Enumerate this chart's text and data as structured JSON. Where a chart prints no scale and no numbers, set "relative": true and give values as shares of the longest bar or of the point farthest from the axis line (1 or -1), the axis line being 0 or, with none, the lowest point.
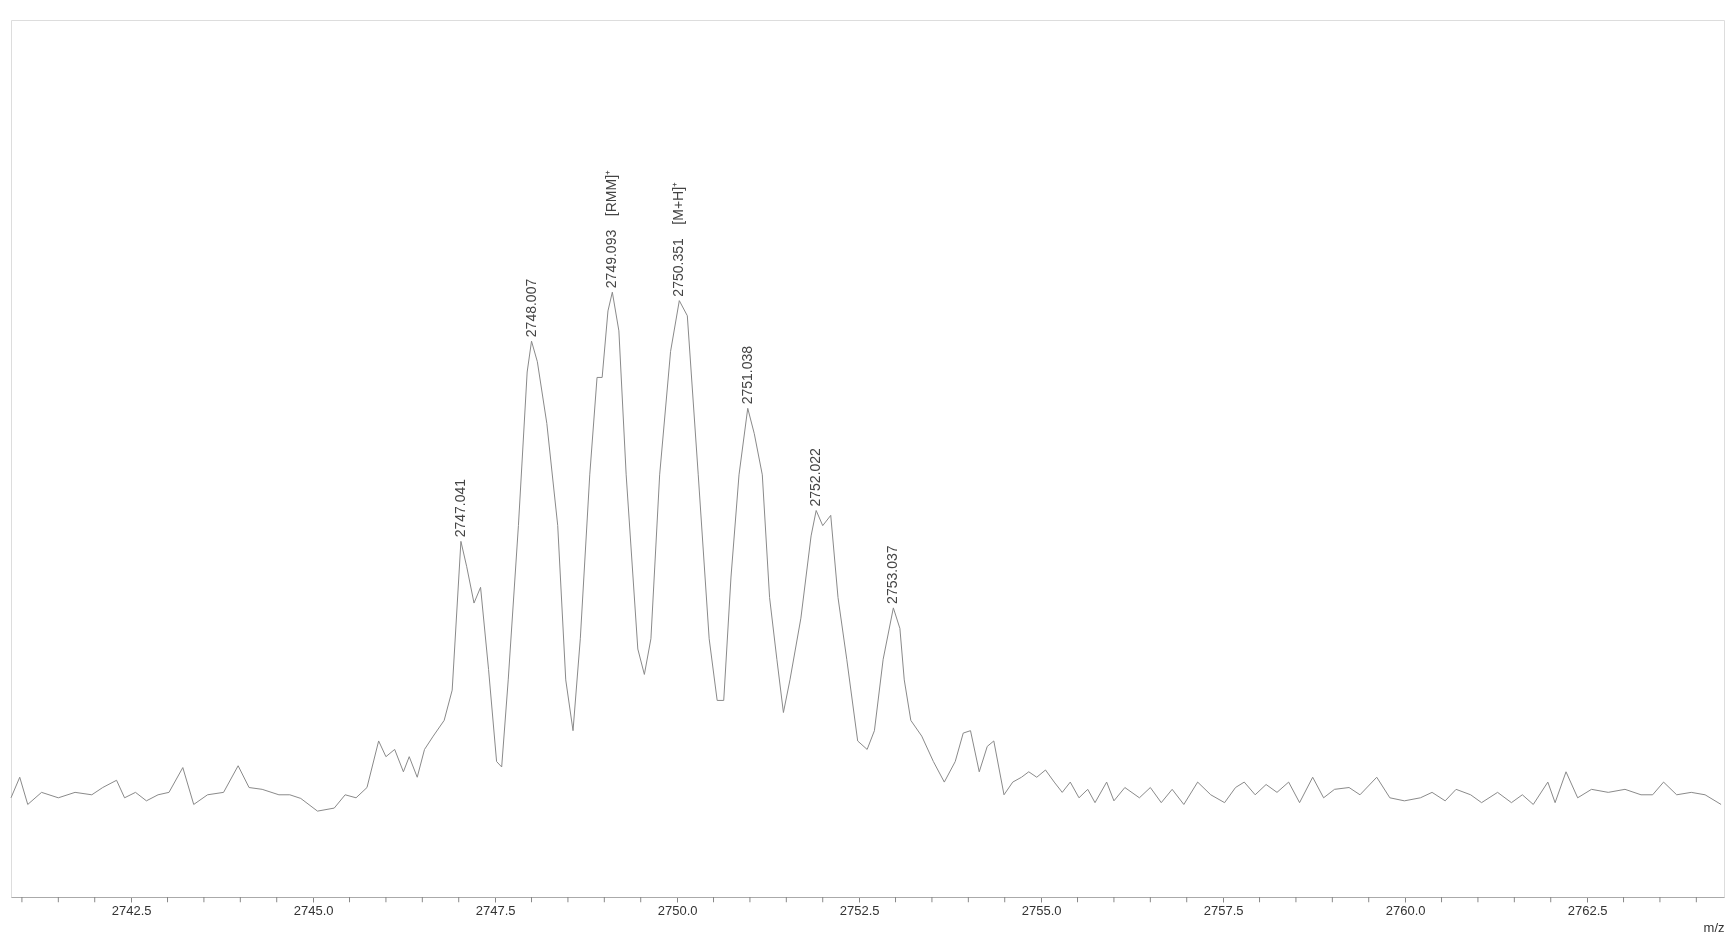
{
  "chart_data": {
    "type": "line",
    "relative": true,
    "xlabel": "m/z",
    "grid": false,
    "legend": false,
    "marker": "none",
    "line_style": "solid",
    "xlim": [
      2740.85,
      2764.38
    ],
    "xticks": [
      {
        "value": 2741.0,
        "label": null
      },
      {
        "value": 2741.5,
        "label": null
      },
      {
        "value": 2742.0,
        "label": null
      },
      2742.5,
      {
        "value": 2743.0,
        "label": null
      },
      {
        "value": 2743.5,
        "label": null
      },
      {
        "value": 2744.0,
        "label": null
      },
      {
        "value": 2744.5,
        "label": null
      },
      {
        "value": 2745.0,
        "label": "2745.0"
      },
      {
        "value": 2745.5,
        "label": null
      },
      {
        "value": 2746.0,
        "label": null
      },
      {
        "value": 2746.5,
        "label": null
      },
      {
        "value": 2747.0,
        "label": null
      },
      2747.5,
      {
        "value": 2748.0,
        "label": null
      },
      {
        "value": 2748.5,
        "label": null
      },
      {
        "value": 2749.0,
        "label": null
      },
      {
        "value": 2749.5,
        "label": null
      },
      {
        "value": 2750.0,
        "label": "2750.0"
      },
      {
        "value": 2750.5,
        "label": null
      },
      {
        "value": 2751.0,
        "label": null
      },
      {
        "value": 2751.5,
        "label": null
      },
      {
        "value": 2752.0,
        "label": null
      },
      2752.5,
      {
        "value": 2753.0,
        "label": null
      },
      {
        "value": 2753.5,
        "label": null
      },
      {
        "value": 2754.0,
        "label": null
      },
      {
        "value": 2754.5,
        "label": null
      },
      {
        "value": 2755.0,
        "label": "2755.0"
      },
      {
        "value": 2755.5,
        "label": null
      },
      {
        "value": 2756.0,
        "label": null
      },
      {
        "value": 2756.5,
        "label": null
      },
      {
        "value": 2757.0,
        "label": null
      },
      2757.5,
      {
        "value": 2758.0,
        "label": null
      },
      {
        "value": 2758.5,
        "label": null
      },
      {
        "value": 2759.0,
        "label": null
      },
      {
        "value": 2759.5,
        "label": null
      },
      {
        "value": 2760.0,
        "label": "2760.0"
      },
      {
        "value": 2760.5,
        "label": null
      },
      {
        "value": 2761.0,
        "label": null
      },
      {
        "value": 2761.5,
        "label": null
      },
      {
        "value": 2762.0,
        "label": null
      },
      2762.5,
      {
        "value": 2763.0,
        "label": null
      },
      {
        "value": 2763.5,
        "label": null
      },
      {
        "value": 2764.0,
        "label": null
      }
    ],
    "series": [
      {
        "color": "#8a8a8a",
        "x": [
          2740.85,
          2740.97,
          2741.08,
          2741.27,
          2741.5,
          2741.73,
          2741.96,
          2742.11,
          2742.3,
          2742.41,
          2742.56,
          2742.71,
          2742.87,
          2743.02,
          2743.21,
          2743.36,
          2743.55,
          2743.77,
          2743.97,
          2744.12,
          2744.3,
          2744.53,
          2744.68,
          2744.83,
          2745.06,
          2745.29,
          2745.44,
          2745.59,
          2745.74,
          2745.9,
          2746.0,
          2746.12,
          2746.24,
          2746.32,
          2746.43,
          2746.53,
          2746.65,
          2746.8,
          2746.91,
          2747.03,
          2747.11,
          2747.21,
          2747.3,
          2747.41,
          2747.52,
          2747.59,
          2747.68,
          2747.82,
          2747.94,
          2748.0,
          2748.08,
          2748.21,
          2748.36,
          2748.47,
          2748.57,
          2748.67,
          2748.8,
          2748.9,
          2748.97,
          2749.05,
          2749.11,
          2749.2,
          2749.3,
          2749.46,
          2749.55,
          2749.64,
          2749.76,
          2749.91,
          2750.03,
          2750.14,
          2750.29,
          2750.44,
          2750.55,
          2750.64,
          2750.74,
          2750.85,
          2750.97,
          2751.06,
          2751.17,
          2751.27,
          2751.37,
          2751.46,
          2751.55,
          2751.7,
          2751.84,
          2751.91,
          2752.0,
          2752.11,
          2752.21,
          2752.33,
          2752.48,
          2752.61,
          2752.71,
          2752.83,
          2752.97,
          2753.06,
          2753.12,
          2753.21,
          2753.36,
          2753.52,
          2753.67,
          2753.82,
          2753.93,
          2754.03,
          2754.15,
          2754.26,
          2754.35,
          2754.49,
          2754.61,
          2754.73,
          2754.83,
          2754.94,
          2755.06,
          2755.18,
          2755.29,
          2755.4,
          2755.52,
          2755.64,
          2755.74,
          2755.9,
          2756.0,
          2756.15,
          2756.35,
          2756.5,
          2756.65,
          2756.8,
          2756.96,
          2757.15,
          2757.33,
          2757.52,
          2757.67,
          2757.79,
          2757.94,
          2758.09,
          2758.24,
          2758.4,
          2758.55,
          2758.73,
          2758.88,
          2759.03,
          2759.23,
          2759.38,
          2759.61,
          2759.79,
          2759.99,
          2760.21,
          2760.37,
          2760.55,
          2760.7,
          2760.9,
          2761.05,
          2761.27,
          2761.46,
          2761.61,
          2761.76,
          2761.96,
          2762.06,
          2762.21,
          2762.37,
          2762.56,
          2762.79,
          2763.02,
          2763.24,
          2763.4,
          2763.55,
          2763.73,
          2763.93,
          2764.12,
          2764.34
        ],
        "values": [
          0.164,
          0.198,
          0.153,
          0.173,
          0.164,
          0.173,
          0.169,
          0.181,
          0.193,
          0.164,
          0.173,
          0.159,
          0.169,
          0.173,
          0.214,
          0.153,
          0.169,
          0.173,
          0.217,
          0.181,
          0.178,
          0.169,
          0.169,
          0.163,
          0.142,
          0.147,
          0.169,
          0.164,
          0.181,
          0.258,
          0.232,
          0.244,
          0.207,
          0.232,
          0.198,
          0.244,
          0.266,
          0.292,
          0.342,
          0.588,
          0.546,
          0.486,
          0.512,
          0.376,
          0.224,
          0.215,
          0.359,
          0.614,
          0.868,
          0.919,
          0.885,
          0.783,
          0.614,
          0.359,
          0.275,
          0.427,
          0.698,
          0.859,
          0.859,
          0.969,
          1.0,
          0.936,
          0.698,
          0.41,
          0.368,
          0.427,
          0.698,
          0.902,
          0.986,
          0.961,
          0.698,
          0.427,
          0.325,
          0.325,
          0.529,
          0.698,
          0.808,
          0.766,
          0.698,
          0.495,
          0.393,
          0.305,
          0.359,
          0.461,
          0.597,
          0.639,
          0.614,
          0.631,
          0.495,
          0.393,
          0.258,
          0.244,
          0.275,
          0.393,
          0.478,
          0.444,
          0.359,
          0.292,
          0.266,
          0.224,
          0.19,
          0.224,
          0.271,
          0.275,
          0.207,
          0.249,
          0.258,
          0.169,
          0.19,
          0.198,
          0.207,
          0.198,
          0.21,
          0.19,
          0.173,
          0.19,
          0.164,
          0.178,
          0.156,
          0.19,
          0.159,
          0.181,
          0.164,
          0.181,
          0.156,
          0.178,
          0.153,
          0.19,
          0.169,
          0.156,
          0.181,
          0.19,
          0.169,
          0.186,
          0.173,
          0.19,
          0.156,
          0.198,
          0.164,
          0.178,
          0.181,
          0.169,
          0.198,
          0.164,
          0.159,
          0.164,
          0.173,
          0.159,
          0.178,
          0.169,
          0.156,
          0.173,
          0.156,
          0.169,
          0.153,
          0.19,
          0.156,
          0.207,
          0.164,
          0.178,
          0.173,
          0.178,
          0.169,
          0.169,
          0.19,
          0.169,
          0.173,
          0.169,
          0.153
        ]
      }
    ],
    "annotations": [
      {
        "text": "2747.041",
        "x": 2747.03,
        "y": 0.588
      },
      {
        "text": "2748.007",
        "x": 2748.0,
        "y": 0.919
      },
      {
        "text": "2749.093",
        "x": 2749.11,
        "y": 1.0
      },
      "[RMM]⁺",
      {
        "text": "2750.351",
        "x": 2750.03,
        "y": 0.986
      },
      "[M+H]⁺",
      {
        "text": "2751.038",
        "x": 2750.97,
        "y": 0.808
      },
      {
        "text": "2752.022",
        "x": 2751.91,
        "y": 0.639
      },
      {
        "text": "2753.037",
        "x": 2752.97,
        "y": 0.478
      }
    ]
  }
}
